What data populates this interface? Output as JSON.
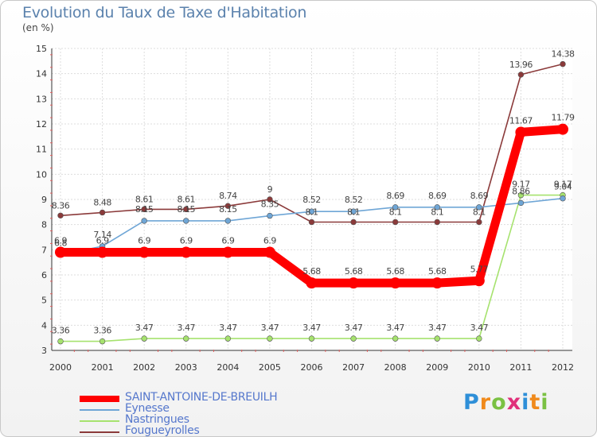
{
  "title": "Evolution du Taux de Taxe d'Habitation",
  "unit": "(en %)",
  "logo": "Proxiti",
  "chart_data": {
    "type": "line",
    "title": "Evolution du Taux de Taxe d'Habitation",
    "ylabel": "(en %)",
    "xlabel": "",
    "x": [
      "2000",
      "2001",
      "2002",
      "2003",
      "2004",
      "2005",
      "2006",
      "2007",
      "2008",
      "2009",
      "2010",
      "2011",
      "2012"
    ],
    "ylim": [
      3,
      15
    ],
    "yticks": [
      "3",
      "4",
      "5",
      "6",
      "7",
      "8",
      "9",
      "10",
      "11",
      "12",
      "13",
      "14",
      "15"
    ],
    "grid": true,
    "legend": "bottom-left",
    "series": [
      {
        "name": "SAINT-ANTOINE-DE-BREUILH",
        "color": "#ff0000",
        "values": [
          6.9,
          6.9,
          6.9,
          6.9,
          6.9,
          6.9,
          5.68,
          5.68,
          5.68,
          5.68,
          5.77,
          11.67,
          11.79
        ],
        "labels": [
          "6.9",
          "6.9",
          "6.9",
          "6.9",
          "6.9",
          "6.9",
          "5.68",
          "5.68",
          "5.68",
          "5.68",
          "5.77",
          "11.67",
          "11.79"
        ]
      },
      {
        "name": "Eynesse",
        "color": "#6fa6d6",
        "values": [
          6.8,
          7.14,
          8.15,
          8.15,
          8.15,
          8.35,
          8.52,
          8.52,
          8.69,
          8.69,
          8.69,
          8.86,
          9.04
        ],
        "labels": [
          "6.8",
          "7.14",
          "8.15",
          "8.15",
          "8.15",
          "8.35",
          "8.52",
          "8.52",
          "8.69",
          "8.69",
          "8.69",
          "8.86",
          "9.04"
        ]
      },
      {
        "name": "Nastringues",
        "color": "#a6e26e",
        "values": [
          3.36,
          3.36,
          3.47,
          3.47,
          3.47,
          3.47,
          3.47,
          3.47,
          3.47,
          3.47,
          3.47,
          9.17,
          9.17
        ],
        "labels": [
          "3.36",
          "3.36",
          "3.47",
          "3.47",
          "3.47",
          "3.47",
          "3.47",
          "3.47",
          "3.47",
          "3.47",
          "3.47",
          "9.17",
          "9.17"
        ]
      },
      {
        "name": "Fougueyrolles",
        "color": "#8b3a3a",
        "values": [
          8.36,
          8.48,
          8.61,
          8.61,
          8.74,
          9,
          8.1,
          8.1,
          8.1,
          8.1,
          8.1,
          13.96,
          14.38
        ],
        "labels": [
          "8.36",
          "8.48",
          "8.61",
          "8.61",
          "8.74",
          "9",
          "8.1",
          "8.1",
          "8.1",
          "8.1",
          "8.1",
          "13.96",
          "14.38"
        ]
      }
    ]
  }
}
